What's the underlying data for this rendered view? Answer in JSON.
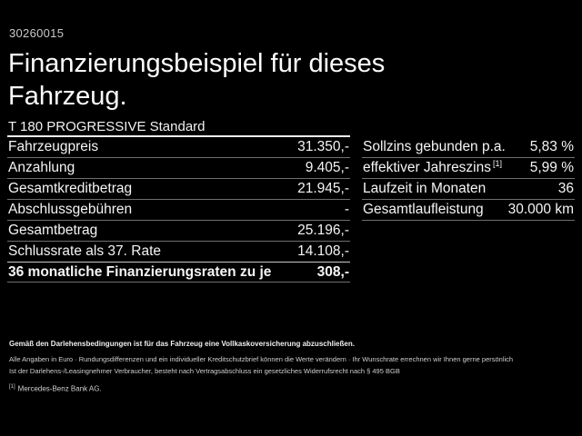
{
  "page": {
    "code": "30260015",
    "title": "Finanzierungsbeispiel für dieses Fahrzeug.",
    "subtitle": "T 180 PROGRESSIVE Standard"
  },
  "left_table": {
    "rows": [
      {
        "label": "Fahrzeugpreis",
        "value": "31.350,-"
      },
      {
        "label": "Anzahlung",
        "value": "9.405,-"
      },
      {
        "label": "Gesamtkreditbetrag",
        "value": "21.945,-"
      },
      {
        "label": "Abschlussgebühren",
        "value": "-"
      },
      {
        "label": "Gesamtbetrag",
        "value": "25.196,-"
      },
      {
        "label": "Schlussrate als 37. Rate",
        "value": "14.108,-"
      },
      {
        "label": "36 monatliche Finanzierungsraten zu je",
        "value": "308,-",
        "emphasis": true
      }
    ]
  },
  "right_table": {
    "rows": [
      {
        "label": "Sollzins gebunden p.a.",
        "value": "5,83 %"
      },
      {
        "label": "effektiver Jahreszins",
        "label_sup": "[1]",
        "value": "5,99 %"
      },
      {
        "label": "Laufzeit in Monaten",
        "value": "36"
      },
      {
        "label": "Gesamtlaufleistung",
        "value": "30.000 km"
      }
    ]
  },
  "footer": {
    "line_bold": "Gemäß den Darlehensbedingungen ist für das Fahrzeug eine Vollkaskoversicherung abzuschließen.",
    "line_1": "Alle Angaben in Euro · Rundungsdifferenzen und ein individueller Kreditschutzbrief können die Werte verändern · Ihr Wunschrate errechnen wir Ihnen gerne persönlich",
    "line_2": "Ist der Darlehens-/Leasingnehmer Verbraucher, besteht nach Vertragsabschluss ein gesetzliches Widerrufsrecht nach § 495 BGB",
    "footnote_marker": "[1]",
    "footnote": "Mercedes-Benz Bank AG."
  },
  "colors": {
    "background": "#000000",
    "text_primary": "#ffffff",
    "text_secondary": "#c9c9c9",
    "divider": "#6f6f6f",
    "divider_strong": "#f2f2f2"
  }
}
